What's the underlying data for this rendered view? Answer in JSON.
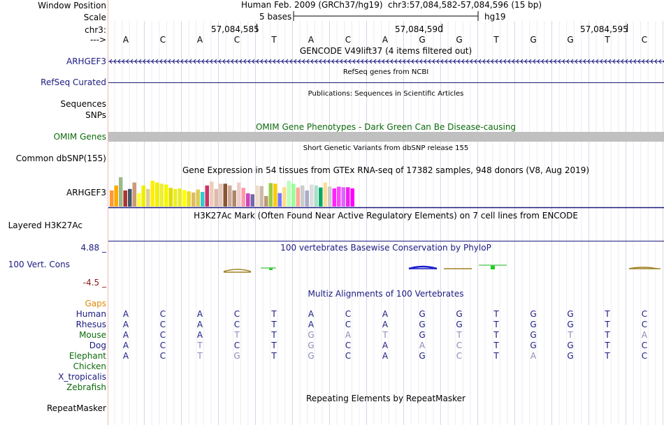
{
  "labels": {
    "window_position": "Window Position",
    "scale": "Scale",
    "chrom": "chr3:",
    "arrow": "--->",
    "arhgef3": "ARHGEF3",
    "refseq": "RefSeq Curated",
    "sequences": "Sequences",
    "snps": "SNPs",
    "omim": "OMIM Genes",
    "dbsnp": "Common dbSNP(155)",
    "gtex": "ARHGEF3",
    "h3k27ac": "Layered H3K27Ac",
    "cons_max": "4.88 _",
    "cons_label": "100 Vert. Cons",
    "cons_min": "-4.5 _",
    "gaps": "Gaps",
    "species": [
      "Human",
      "Rhesus",
      "Mouse",
      "Dog",
      "Elephant",
      "Chicken",
      "X_tropicalis",
      "Zebrafish"
    ],
    "repeatmasker": "RepeatMasker"
  },
  "header": {
    "assembly": "Human Feb. 2009 (GRCh37/hg19)",
    "position": "chr3:57,084,582-57,084,596 (15 bp)",
    "scale_text": "5 bases",
    "scale_db": "hg19",
    "coords": [
      "57,084,585",
      "57,084,590",
      "57,084,595"
    ]
  },
  "tracks": {
    "gencode": "GENCODE V49lift37 (4 items filtered out)",
    "refseq": "RefSeq genes from NCBI",
    "publications": "Publications: Sequences in Scientific Articles",
    "omim": "OMIM Gene Phenotypes - Dark Green Can Be Disease-causing",
    "dbsnp": "Short Genetic Variants from dbSNP release 155",
    "gtex": "Gene Expression in 54 tissues from GTEx RNA-seq of 17382 samples, 948 donors (V8, Aug 2019)",
    "h3k27ac": "H3K27Ac Mark (Often Found Near Active Regulatory Elements) on 7 cell lines from ENCODE",
    "phylop": "100 vertebrates Basewise Conservation by PhyloP",
    "multiz": "Multiz Alignments of 100 Vertebrates",
    "repeatmasker": "Repeating Elements by RepeatMasker"
  },
  "sequence": [
    "A",
    "C",
    "A",
    "C",
    "T",
    "A",
    "C",
    "A",
    "G",
    "G",
    "T",
    "G",
    "G",
    "T",
    "C"
  ],
  "alignment": [
    {
      "species": "Human",
      "bases": [
        "A",
        "C",
        "A",
        "C",
        "T",
        "A",
        "C",
        "A",
        "G",
        "G",
        "T",
        "G",
        "G",
        "T",
        "C"
      ],
      "faded": [
        0,
        0,
        0,
        0,
        0,
        0,
        0,
        0,
        0,
        0,
        0,
        0,
        0,
        0,
        0
      ]
    },
    {
      "species": "Rhesus",
      "bases": [
        "A",
        "C",
        "A",
        "C",
        "T",
        "A",
        "C",
        "A",
        "G",
        "G",
        "T",
        "G",
        "G",
        "T",
        "C"
      ],
      "faded": [
        0,
        0,
        0,
        0,
        0,
        0,
        0,
        0,
        0,
        0,
        0,
        0,
        0,
        0,
        0
      ]
    },
    {
      "species": "Mouse",
      "bases": [
        "A",
        "C",
        "A",
        "T",
        "T",
        "G",
        "A",
        "T",
        "G",
        "T",
        "T",
        "G",
        "T",
        "T",
        "A"
      ],
      "faded": [
        0,
        0,
        0,
        1,
        0,
        1,
        1,
        1,
        0,
        1,
        0,
        0,
        1,
        0,
        1
      ]
    },
    {
      "species": "Dog",
      "bases": [
        "A",
        "C",
        "T",
        "C",
        "T",
        "G",
        "C",
        "A",
        "A",
        "C",
        "T",
        "G",
        "G",
        "T",
        "C"
      ],
      "faded": [
        0,
        0,
        1,
        0,
        0,
        1,
        0,
        0,
        1,
        1,
        0,
        0,
        0,
        0,
        0
      ]
    },
    {
      "species": "Elephant",
      "bases": [
        "A",
        "C",
        "T",
        "G",
        "T",
        "G",
        "C",
        "A",
        "G",
        "C",
        "T",
        "A",
        "G",
        "T",
        "C"
      ],
      "faded": [
        0,
        0,
        1,
        1,
        0,
        1,
        0,
        0,
        0,
        1,
        0,
        1,
        0,
        0,
        0
      ]
    }
  ],
  "gtex_values": [
    0.55,
    0.72,
    1.0,
    0.55,
    0.6,
    0.82,
    0.46,
    0.72,
    0.6,
    0.88,
    0.82,
    0.78,
    0.75,
    0.64,
    0.6,
    0.62,
    0.56,
    0.52,
    0.48,
    0.58,
    0.5,
    0.72,
    0.85,
    0.6,
    0.78,
    0.78,
    0.72,
    0.55,
    0.82,
    0.64,
    0.45,
    0.42,
    0.72,
    0.7,
    0.36,
    0.8,
    0.78,
    0.46,
    0.66,
    0.88,
    0.78,
    0.65,
    0.72,
    0.55,
    0.75,
    0.72,
    0.65,
    0.82,
    0.68,
    0.62,
    0.68,
    0.66,
    0.66,
    0.62
  ],
  "gtex_colors": [
    "#ff9933",
    "#ffaa00",
    "#99bb88",
    "#aa3333",
    "#445566",
    "#cc9977",
    "#ffff33",
    "#eeee00",
    "#ddcc99",
    "#ffee00",
    "#f0f000",
    "#eeee33",
    "#f5f500",
    "#dddd00",
    "#eeee22",
    "#e8e833",
    "#ffff00",
    "#eedd22",
    "#ddbb66",
    "#ddcc55",
    "#33cccc",
    "#cc3366",
    "#eeccbb",
    "#ddbbaa",
    "#e8c8b8",
    "#885533",
    "#ccaa99",
    "#aa8866",
    "#eecccc",
    "#ff99aa",
    "#cc44bb",
    "#7766aa",
    "#eeddcc",
    "#ccbbaa",
    "#bb9977",
    "#99cc44",
    "#ffcc00",
    "#7777ff",
    "#ffdd88",
    "#bbffbb",
    "#99ff99",
    "#ffaa99",
    "#cccccc",
    "#aaaacc",
    "#dddddd",
    "#aaddcc",
    "#00aa66",
    "#ffdd99",
    "#cccccc",
    "#ff22ff",
    "#ff44ff",
    "#dd66ff",
    "#ee22ee",
    "#ff00ff"
  ]
}
